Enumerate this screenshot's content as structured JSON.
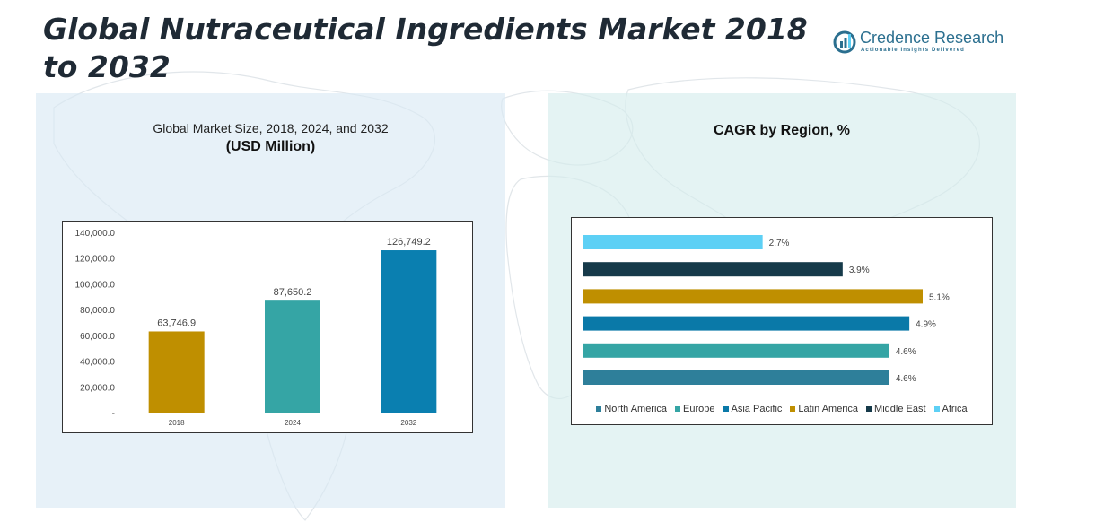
{
  "header": {
    "title": "Global Nutraceutical Ingredients Market 2018 to 2032"
  },
  "logo": {
    "name": "Credence Research",
    "tagline": "Actionable Insights Delivered"
  },
  "left_panel": {
    "title": "Global Market Size, 2018, 2024, and 2032",
    "unit": "(USD Million)"
  },
  "right_panel": {
    "title": "CAGR by Region, %"
  },
  "colors": {
    "north_america": "#2e7f9a",
    "europe": "#35a5a5",
    "asia_pacific": "#0a79a8",
    "latin_america": "#bf8f00",
    "middle_east": "#163a4a",
    "africa": "#5dd0f5",
    "bar_2018": "#bf8f00",
    "bar_2024": "#35a5a5",
    "bar_2032": "#0a7fb0"
  },
  "chart_data": [
    {
      "type": "bar",
      "title": "Global Market Size, 2018, 2024, and 2032",
      "subtitle": "(USD Million)",
      "categories": [
        "2018",
        "2024",
        "2032"
      ],
      "values": [
        63746.9,
        87650.2,
        126749.2
      ],
      "value_labels": [
        "63,746.9",
        "87,650.2",
        "126,749.2"
      ],
      "ylim": [
        0,
        140000
      ],
      "yticks": [
        0,
        20000,
        40000,
        60000,
        80000,
        100000,
        120000,
        140000
      ],
      "ytick_labels": [
        "-",
        "20,000.0",
        "40,000.0",
        "60,000.0",
        "80,000.0",
        "100,000.0",
        "120,000.0",
        "140,000.0"
      ],
      "xlabel": "",
      "ylabel": "",
      "grid": false
    },
    {
      "type": "bar",
      "orientation": "horizontal",
      "title": "CAGR by Region, %",
      "categories": [
        "North America",
        "Europe",
        "Asia Pacific",
        "Latin America",
        "Middle East",
        "Africa"
      ],
      "values": [
        4.6,
        4.6,
        4.9,
        5.1,
        3.9,
        2.7
      ],
      "value_labels": [
        "4.6%",
        "4.6%",
        "4.9%",
        "5.1%",
        "3.9%",
        "2.7%"
      ],
      "xlim": [
        0,
        5.1
      ],
      "legend": "bottom",
      "grid": false
    }
  ]
}
